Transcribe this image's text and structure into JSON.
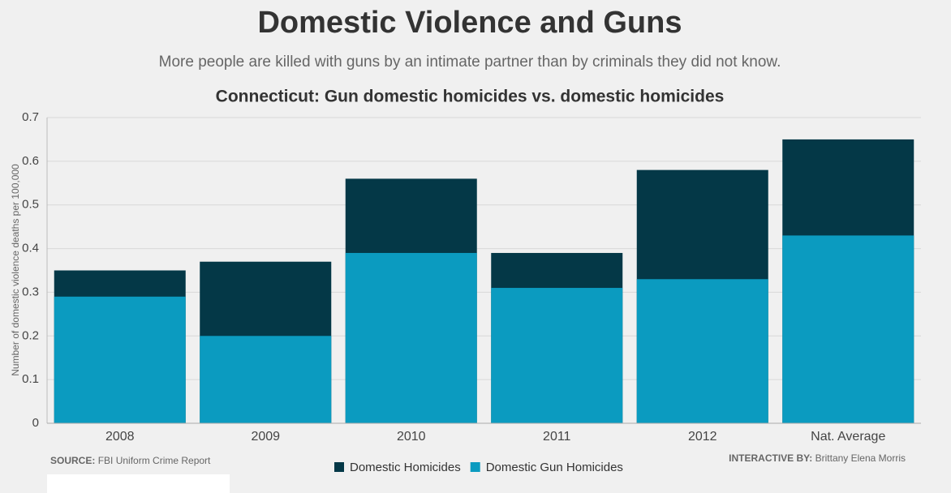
{
  "chart_data": {
    "type": "bar",
    "title": "Domestic Violence and Guns",
    "subtitle": "More people are killed with guns by an intimate partner than by criminals they did not know.",
    "chart_title": "Connecticut: Gun domestic homicides vs. domestic homicides",
    "y_label": "Number of domestic violence deaths per 100,000",
    "categories": [
      "2008",
      "2009",
      "2010",
      "2011",
      "2012",
      "Nat. Average"
    ],
    "series": [
      {
        "name": "Domestic Homicides",
        "color": "#043847",
        "values": [
          0.35,
          0.37,
          0.56,
          0.39,
          0.58,
          0.65
        ]
      },
      {
        "name": "Domestic Gun Homicides",
        "color": "#0b9bc0",
        "values": [
          0.29,
          0.2,
          0.39,
          0.31,
          0.33,
          0.43
        ]
      }
    ],
    "ylim": [
      0,
      0.7
    ],
    "yticks": [
      0,
      0.1,
      0.2,
      0.3,
      0.4,
      0.5,
      0.6,
      0.7
    ],
    "grid": true,
    "source_label": "SOURCE:",
    "source": "FBI Uniform Crime Report",
    "credit_label": "INTERACTIVE BY:",
    "credit": "Brittany Elena Morris"
  }
}
